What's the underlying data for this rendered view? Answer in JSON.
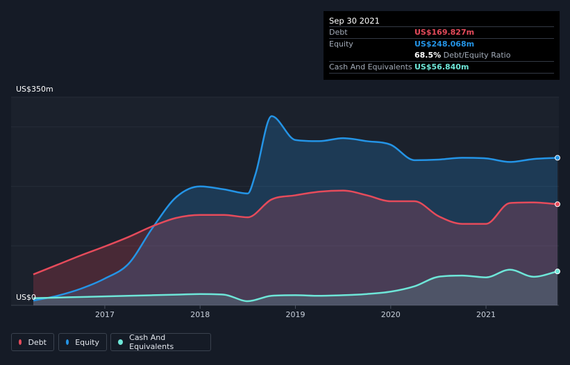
{
  "tooltip": {
    "date": "Sep 30 2021",
    "debt_label": "Debt",
    "debt_value": "US$169.827m",
    "equity_label": "Equity",
    "equity_value": "US$248.068m",
    "ratio_value": "68.5%",
    "ratio_label": "Debt/Equity Ratio",
    "cash_label": "Cash And Equivalents",
    "cash_value": "US$56.840m"
  },
  "legend": {
    "debt": "Debt",
    "equity": "Equity",
    "cash": "Cash And Equivalents"
  },
  "colors": {
    "debt": "#e64b5b",
    "equity": "#2494e6",
    "cash": "#6ee6d8",
    "background": "#151b26"
  },
  "chart_data": {
    "type": "area",
    "title": "",
    "xlabel": "",
    "ylabel": "",
    "ylim": [
      0,
      350
    ],
    "xlim": [
      2016.25,
      2021.75
    ],
    "ytick_labels": {
      "top": "US$350m",
      "bottom": "US$0"
    },
    "x_ticks": [
      2017,
      2018,
      2019,
      2020,
      2021
    ],
    "x_tick_labels": [
      "2017",
      "2018",
      "2019",
      "2020",
      "2021"
    ],
    "grid_values": [
      0,
      100,
      200,
      300,
      350
    ],
    "series": [
      {
        "name": "Equity",
        "x": [
          2016.25,
          2016.5,
          2016.75,
          2017.0,
          2017.25,
          2017.5,
          2017.75,
          2018.0,
          2018.25,
          2018.5,
          2018.58,
          2018.75,
          2019.0,
          2019.25,
          2019.5,
          2019.75,
          2020.0,
          2020.25,
          2020.5,
          2020.75,
          2021.0,
          2021.25,
          2021.5,
          2021.75
        ],
        "values": [
          8,
          16,
          28,
          45,
          70,
          130,
          182,
          200,
          195,
          188,
          220,
          318,
          278,
          276,
          281,
          276,
          270,
          244,
          245,
          248,
          247,
          241,
          246,
          248
        ]
      },
      {
        "name": "Debt",
        "x": [
          2016.25,
          2016.5,
          2016.75,
          2017.0,
          2017.25,
          2017.5,
          2017.75,
          2018.0,
          2018.25,
          2018.5,
          2018.75,
          2019.0,
          2019.25,
          2019.5,
          2019.75,
          2020.0,
          2020.25,
          2020.5,
          2020.75,
          2021.0,
          2021.25,
          2021.5,
          2021.75
        ],
        "values": [
          52,
          68,
          84,
          99,
          115,
          133,
          147,
          152,
          152,
          148,
          178,
          185,
          191,
          193,
          185,
          175,
          175,
          150,
          137,
          137,
          172,
          173,
          170
        ]
      },
      {
        "name": "Cash And Equivalents",
        "x": [
          2016.25,
          2016.5,
          2016.75,
          2017.0,
          2017.25,
          2017.5,
          2017.75,
          2018.0,
          2018.25,
          2018.5,
          2018.75,
          2019.0,
          2019.25,
          2019.5,
          2019.75,
          2020.0,
          2020.25,
          2020.5,
          2020.75,
          2021.0,
          2021.25,
          2021.5,
          2021.75
        ],
        "values": [
          12,
          13,
          14,
          15,
          16,
          17,
          18,
          19,
          18,
          7,
          16,
          17,
          16,
          17,
          19,
          23,
          32,
          48,
          50,
          47,
          60,
          48,
          57
        ]
      }
    ]
  }
}
